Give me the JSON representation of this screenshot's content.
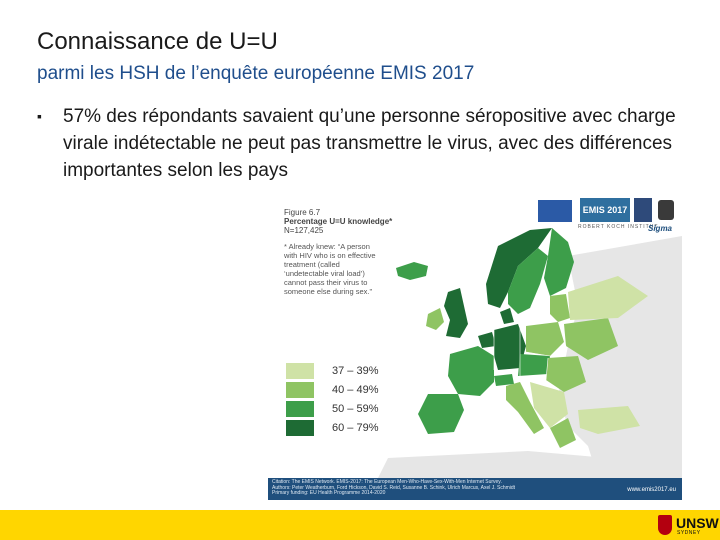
{
  "slide": {
    "title": "Connaissance de U=U",
    "subtitle": "parmi les HSH de l’enquête européenne EMIS 2017",
    "bullet": "57% des répondants savaient qu’une personne séropositive avec charge virale indétectable ne peut pas transmettre le virus, avec des différences importantes selon les pays"
  },
  "figure": {
    "label": "Figure 6.7",
    "heading": "Percentage U=U knowledge*",
    "n": "N=127,425",
    "definition": "* Already knew: “A person with HIV who is on effective treatment (called ‘undetectable viral load’) cannot pass their virus to someone else during sex.”",
    "legend": [
      {
        "label": "37 – 39%",
        "color": "#cfe2a6"
      },
      {
        "label": "40 – 49%",
        "color": "#8fc463"
      },
      {
        "label": "50 – 59%",
        "color": "#3d9e4a"
      },
      {
        "label": "60 – 79%",
        "color": "#1e6b34"
      }
    ],
    "footer": {
      "citation_label": "Citation:",
      "citation": "The EMIS Network. EMIS-2017: The European Men-Who-Have-Sex-With-Men Internet Survey.",
      "authors_label": "Authors:",
      "authors": "Peter Weatherburn, Ford Hickson, David S. Reid, Susanne B. Schink, Ulrich Marcus, Axel J. Schmidt",
      "funding_label": "Primary funding:",
      "funding": "EU Health Programme 2014-2020",
      "url": "www.emis2017.eu"
    },
    "logos": {
      "emis": "EMIS 2017",
      "rki": "ROBERT KOCH INSTITUT",
      "sigma": "Sigma"
    }
  },
  "brand": {
    "name": "UNSW",
    "sub": "SYDNEY"
  }
}
